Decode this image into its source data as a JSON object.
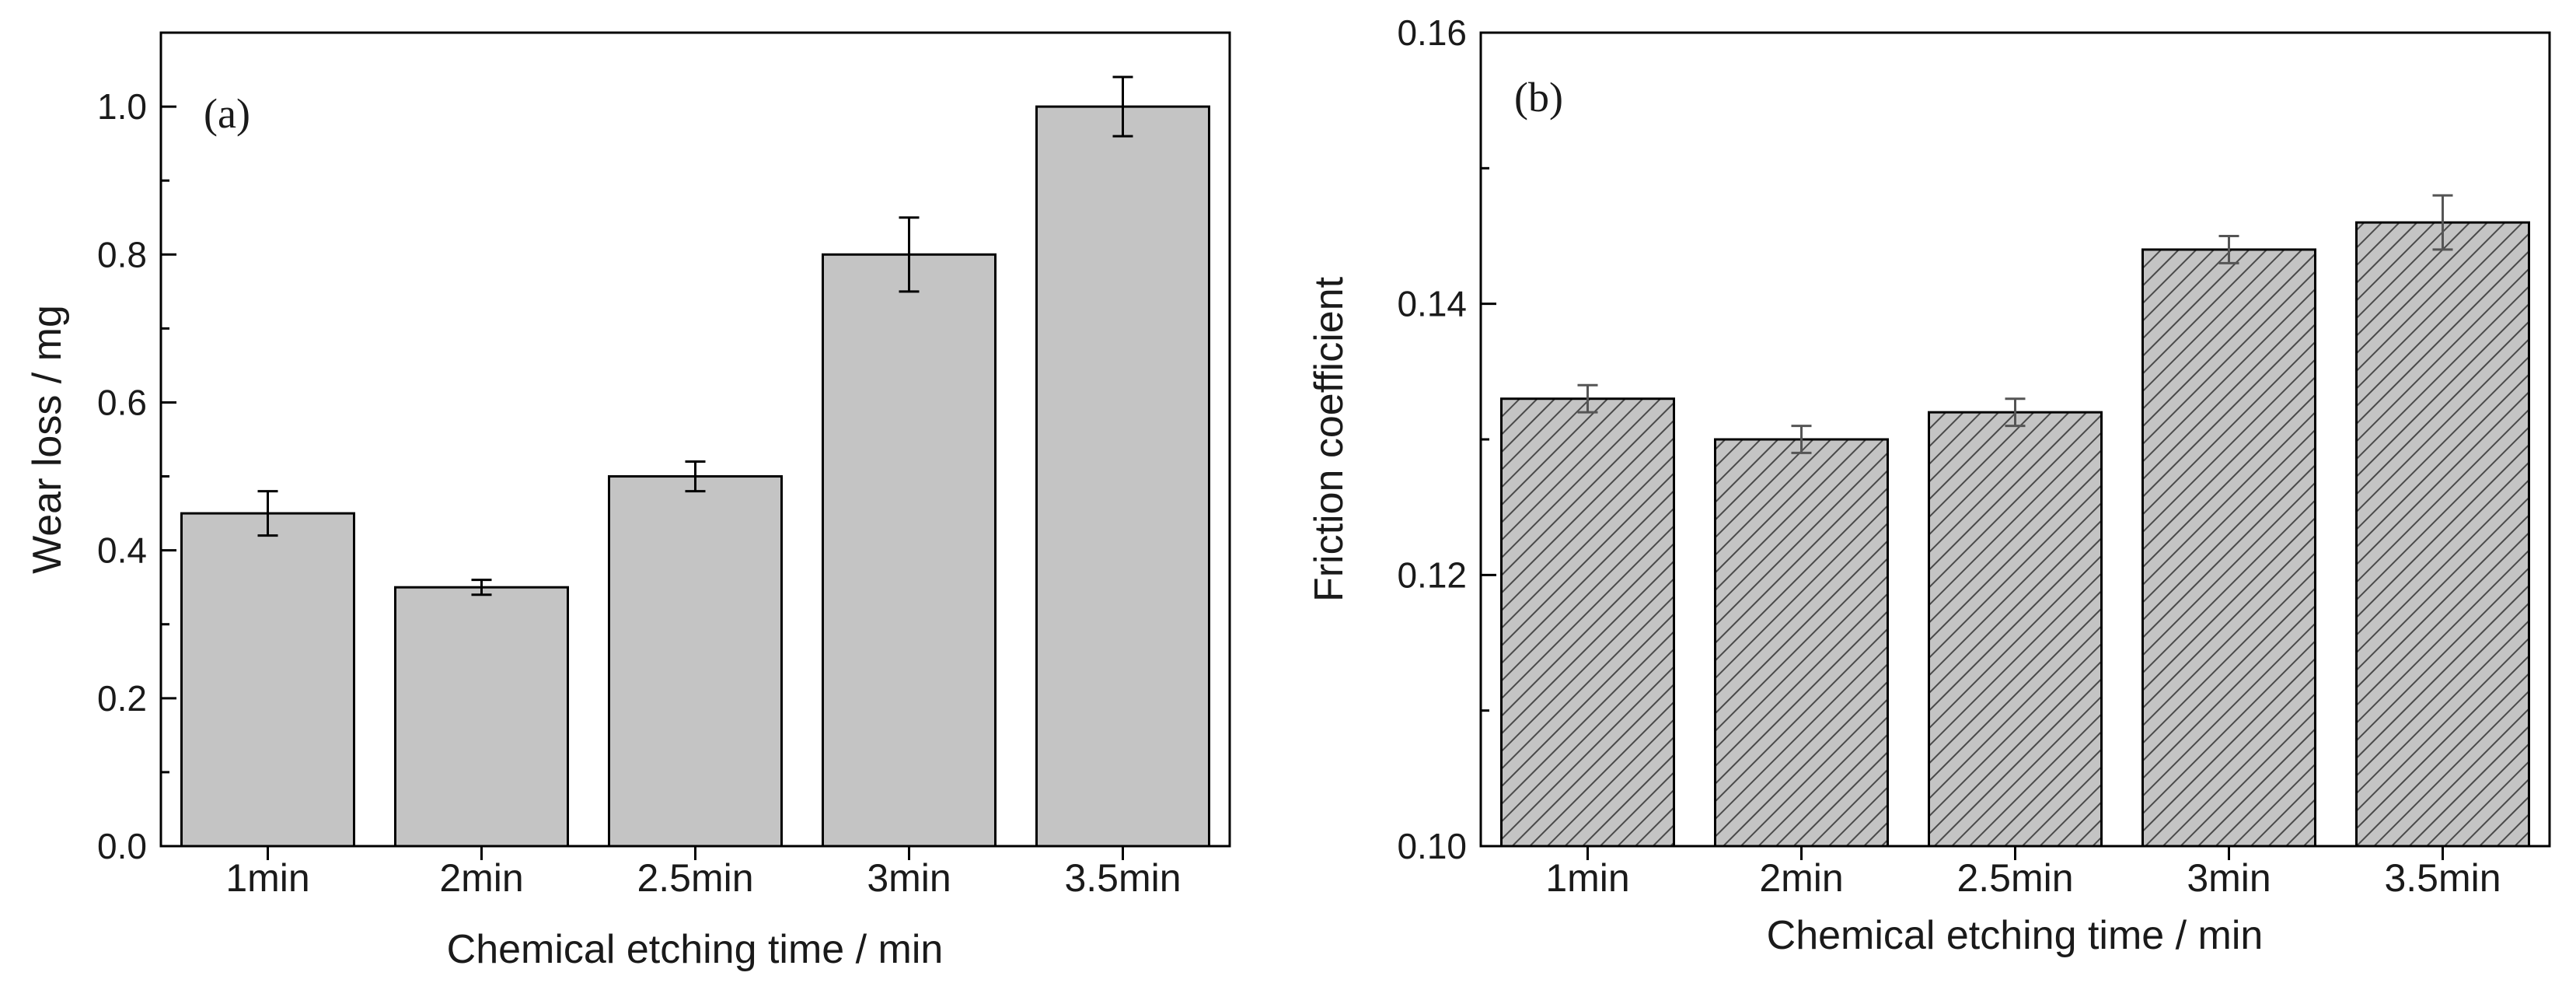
{
  "chart_data": [
    {
      "type": "bar",
      "panel_label": "(a)",
      "categories": [
        "1min",
        "2min",
        "2.5min",
        "3min",
        "3.5min"
      ],
      "values": [
        0.45,
        0.35,
        0.5,
        0.8,
        1.0
      ],
      "errors": [
        0.03,
        0.01,
        0.02,
        0.05,
        0.04
      ],
      "xlabel": "Chemical etching time / min",
      "ylabel": "Wear loss / mg",
      "ylim": [
        0.0,
        1.1
      ],
      "yticks": [
        0.0,
        0.2,
        0.4,
        0.6,
        0.8,
        1.0
      ],
      "ytick_labels": [
        "0.0",
        "0.2",
        "0.4",
        "0.6",
        "0.8",
        "1.0"
      ],
      "bar_color": "#c4c4c4",
      "bar_pattern": "solid"
    },
    {
      "type": "bar",
      "panel_label": "(b)",
      "categories": [
        "1min",
        "2min",
        "2.5min",
        "3min",
        "3.5min"
      ],
      "values": [
        0.133,
        0.13,
        0.132,
        0.144,
        0.146
      ],
      "errors": [
        0.001,
        0.001,
        0.001,
        0.001,
        0.002
      ],
      "xlabel": "Chemical etching time / min",
      "ylabel": "Friction coefficient",
      "ylim": [
        0.1,
        0.16
      ],
      "yticks": [
        0.1,
        0.12,
        0.14,
        0.16
      ],
      "ytick_labels": [
        "0.10",
        "0.12",
        "0.14",
        "0.16"
      ],
      "bar_color": "#c4c4c4",
      "bar_pattern": "hatched"
    }
  ]
}
